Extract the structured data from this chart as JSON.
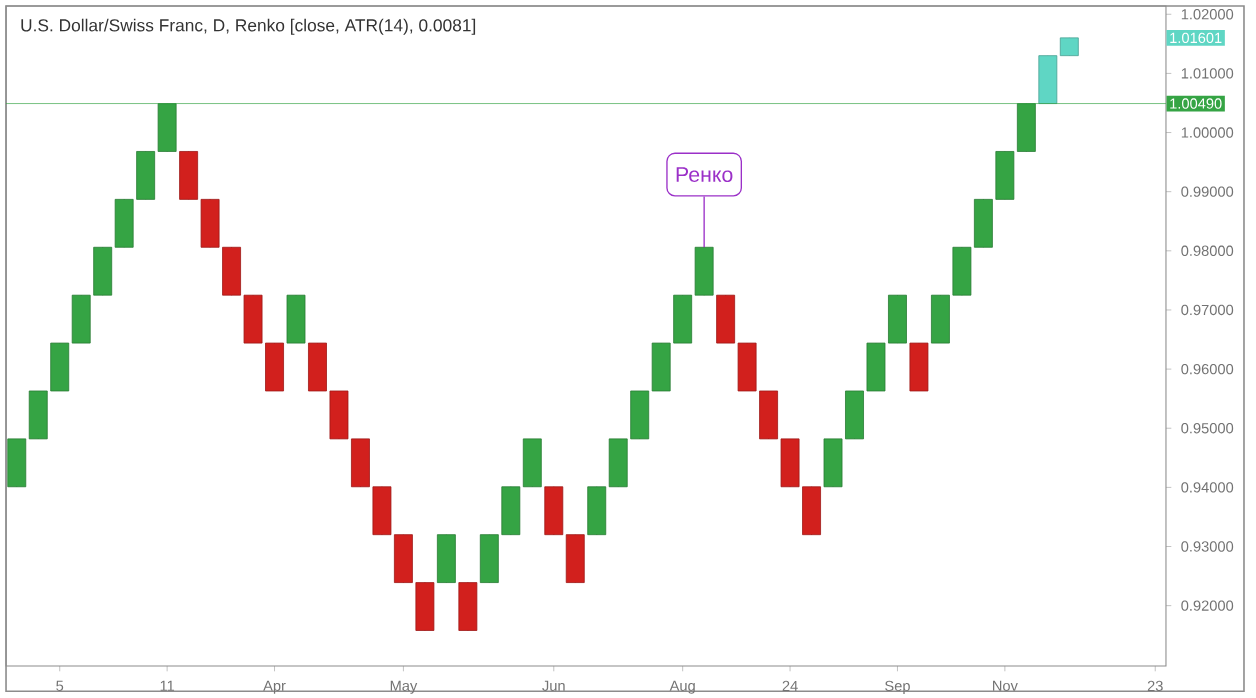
{
  "chart_data": {
    "type": "candlestick",
    "title": "U.S. Dollar/Swiss Franc, D, Renko [close, ATR(14), 0.0081]",
    "categories": [
      null,
      null,
      "5",
      null,
      null,
      null,
      null,
      "11",
      null,
      null,
      null,
      null,
      "Apr",
      null,
      null,
      null,
      null,
      null,
      "May",
      null,
      null,
      null,
      null,
      null,
      null,
      "Jun",
      null,
      null,
      null,
      null,
      null,
      "Aug",
      null,
      null,
      null,
      null,
      "24",
      null,
      null,
      null,
      null,
      "Sep",
      null,
      null,
      null,
      null,
      "Nov",
      null,
      null,
      null,
      null,
      null,
      null,
      "23"
    ],
    "ohlc": [
      [
        0.9401,
        0.9482,
        0.9401,
        0.9482
      ],
      [
        0.9482,
        0.9563,
        0.9482,
        0.9563
      ],
      [
        0.9563,
        0.9644,
        0.9563,
        0.9644
      ],
      [
        0.9644,
        0.9725,
        0.9644,
        0.9725
      ],
      [
        0.9725,
        0.9806,
        0.9725,
        0.9806
      ],
      [
        0.9806,
        0.9887,
        0.9806,
        0.9887
      ],
      [
        0.9887,
        0.9968,
        0.9887,
        0.9968
      ],
      [
        0.9968,
        1.0049,
        0.9968,
        1.0049
      ],
      [
        0.9968,
        0.9968,
        0.9887,
        0.9887
      ],
      [
        0.9887,
        0.9887,
        0.9806,
        0.9806
      ],
      [
        0.9806,
        0.9806,
        0.9725,
        0.9725
      ],
      [
        0.9725,
        0.9725,
        0.9644,
        0.9644
      ],
      [
        0.9644,
        0.9644,
        0.9563,
        0.9563
      ],
      [
        0.9644,
        0.9725,
        0.9644,
        0.9725
      ],
      [
        0.9644,
        0.9644,
        0.9563,
        0.9563
      ],
      [
        0.9563,
        0.9563,
        0.9482,
        0.9482
      ],
      [
        0.9482,
        0.9482,
        0.9401,
        0.9401
      ],
      [
        0.9401,
        0.9401,
        0.932,
        0.932
      ],
      [
        0.932,
        0.932,
        0.9239,
        0.9239
      ],
      [
        0.9239,
        0.9239,
        0.9158,
        0.9158
      ],
      [
        0.9239,
        0.932,
        0.9239,
        0.932
      ],
      [
        0.9239,
        0.9239,
        0.9158,
        0.9158
      ],
      [
        0.9239,
        0.932,
        0.9239,
        0.932
      ],
      [
        0.932,
        0.9401,
        0.932,
        0.9401
      ],
      [
        0.9401,
        0.9482,
        0.9401,
        0.9482
      ],
      [
        0.9401,
        0.9401,
        0.932,
        0.932
      ],
      [
        0.932,
        0.932,
        0.9239,
        0.9239
      ],
      [
        0.932,
        0.9401,
        0.932,
        0.9401
      ],
      [
        0.9401,
        0.9482,
        0.9401,
        0.9482
      ],
      [
        0.9482,
        0.9563,
        0.9482,
        0.9563
      ],
      [
        0.9563,
        0.9644,
        0.9563,
        0.9644
      ],
      [
        0.9644,
        0.9725,
        0.9644,
        0.9725
      ],
      [
        0.9725,
        0.9806,
        0.9725,
        0.9806
      ],
      [
        0.9725,
        0.9725,
        0.9644,
        0.9644
      ],
      [
        0.9644,
        0.9644,
        0.9563,
        0.9563
      ],
      [
        0.9563,
        0.9563,
        0.9482,
        0.9482
      ],
      [
        0.9482,
        0.9482,
        0.9401,
        0.9401
      ],
      [
        0.9401,
        0.9401,
        0.932,
        0.932
      ],
      [
        0.9401,
        0.9482,
        0.9401,
        0.9482
      ],
      [
        0.9482,
        0.9563,
        0.9482,
        0.9563
      ],
      [
        0.9563,
        0.9644,
        0.9563,
        0.9644
      ],
      [
        0.9644,
        0.9725,
        0.9644,
        0.9725
      ],
      [
        0.9644,
        0.9644,
        0.9563,
        0.9563
      ],
      [
        0.9644,
        0.9725,
        0.9644,
        0.9725
      ],
      [
        0.9725,
        0.9806,
        0.9725,
        0.9806
      ],
      [
        0.9806,
        0.9887,
        0.9806,
        0.9887
      ],
      [
        0.9887,
        0.9968,
        0.9887,
        0.9968
      ],
      [
        0.9968,
        1.0049,
        0.9968,
        1.0049
      ],
      [
        1.0049,
        1.013,
        1.0049,
        1.013
      ],
      [
        1.013,
        1.01601,
        1.013,
        1.01601
      ],
      null,
      null,
      null,
      null
    ],
    "colors": [
      "#35a444",
      "#35a444",
      "#35a444",
      "#35a444",
      "#35a444",
      "#35a444",
      "#35a444",
      "#35a444",
      "#d2201d",
      "#d2201d",
      "#d2201d",
      "#d2201d",
      "#d2201d",
      "#35a444",
      "#d2201d",
      "#d2201d",
      "#d2201d",
      "#d2201d",
      "#d2201d",
      "#d2201d",
      "#35a444",
      "#d2201d",
      "#35a444",
      "#35a444",
      "#35a444",
      "#d2201d",
      "#d2201d",
      "#35a444",
      "#35a444",
      "#35a444",
      "#35a444",
      "#35a444",
      "#35a444",
      "#d2201d",
      "#d2201d",
      "#d2201d",
      "#d2201d",
      "#d2201d",
      "#35a444",
      "#35a444",
      "#35a444",
      "#35a444",
      "#d2201d",
      "#35a444",
      "#35a444",
      "#35a444",
      "#35a444",
      "#35a444",
      "#5fd6c4",
      "#5fd6c4",
      null,
      null,
      null,
      null
    ],
    "ylim": [
      0.9098,
      1.0214
    ],
    "yticks": [
      {
        "value": 0.92,
        "label": "0.92000"
      },
      {
        "value": 0.93,
        "label": "0.93000"
      },
      {
        "value": 0.94,
        "label": "0.94000"
      },
      {
        "value": 0.95,
        "label": "0.95000"
      },
      {
        "value": 0.96,
        "label": "0.96000"
      },
      {
        "value": 0.97,
        "label": "0.97000"
      },
      {
        "value": 0.98,
        "label": "0.98000"
      },
      {
        "value": 0.99,
        "label": "0.99000"
      },
      {
        "value": 1.0,
        "label": "1.00000"
      },
      {
        "value": 1.01,
        "label": "1.01000"
      },
      {
        "value": 1.02,
        "label": "1.02000"
      }
    ],
    "ref_lines": [
      {
        "axis": "y",
        "value": 1.0049,
        "label": "1.00490",
        "color": "#35a444"
      }
    ],
    "annotations": [
      {
        "text": "Ренко",
        "y": 0.9806
      },
      "1.01601"
    ]
  }
}
